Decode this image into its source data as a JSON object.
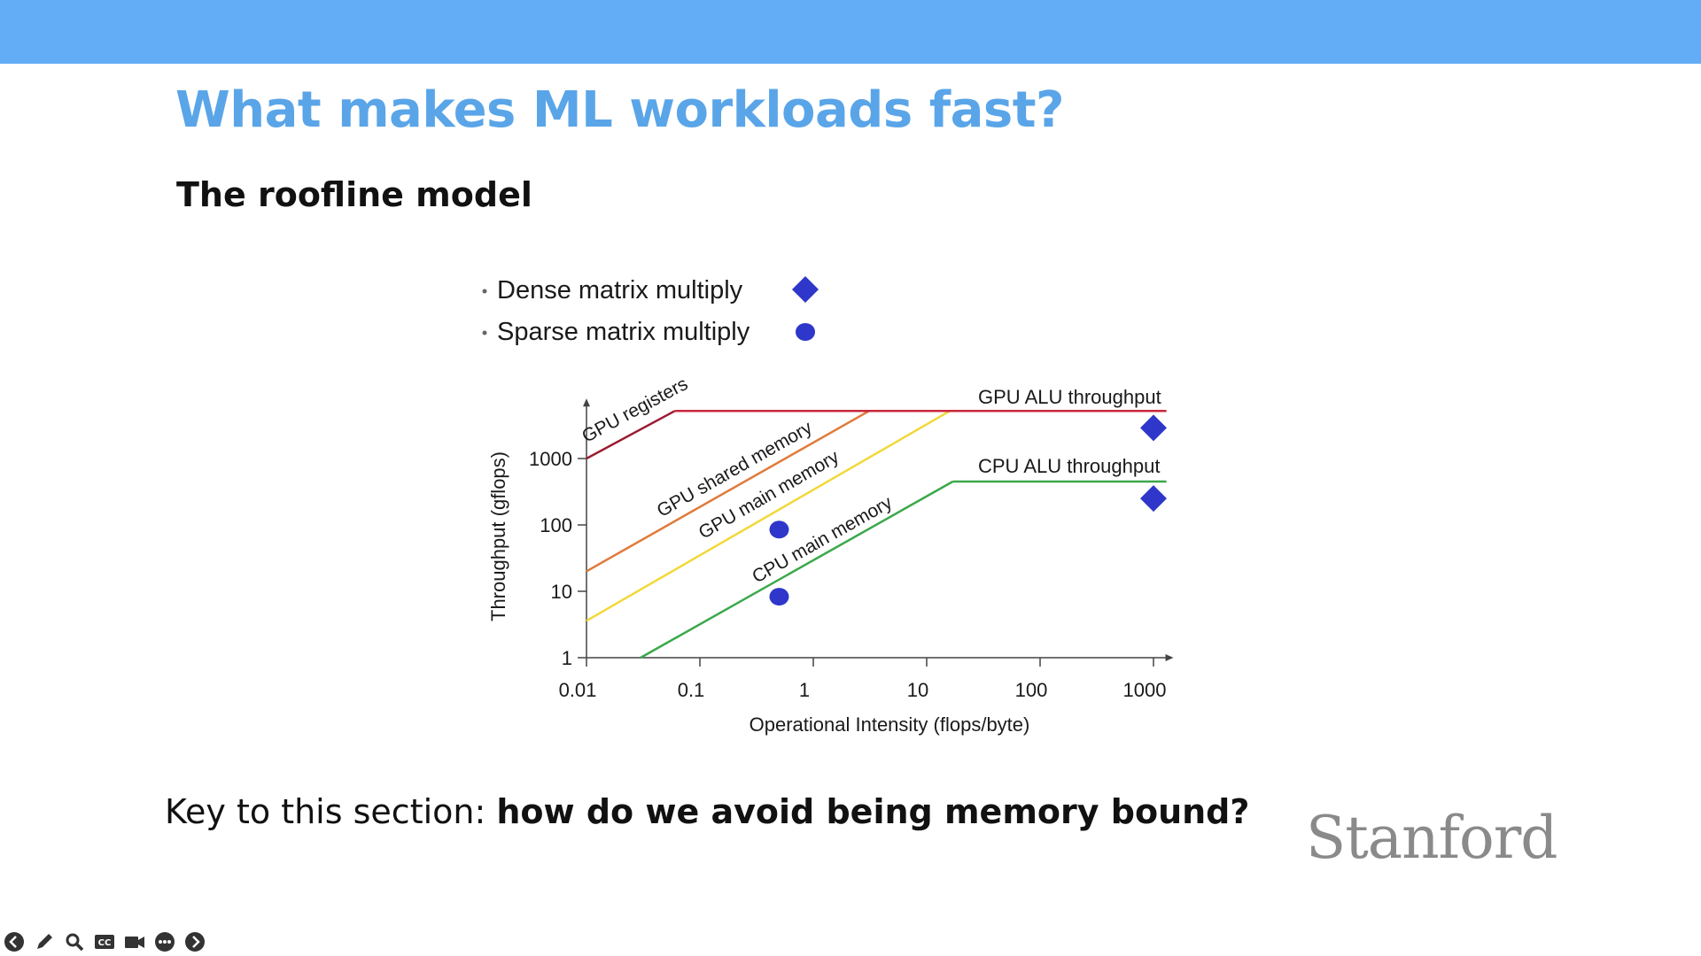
{
  "slide": {
    "title": "What makes ML workloads fast?",
    "subtitle": "The roofline model",
    "key_prefix": "Key to this section: ",
    "key_bold": "how do we avoid being memory bound?",
    "logo_text": "Stanford"
  },
  "colors": {
    "top_bar": "#63adf7",
    "title": "#5aa5e8",
    "gpu_registers": "#9b1b30",
    "gpu_shared_memory": "#e07a3a",
    "gpu_main_memory": "#f2d83a",
    "cpu_main_memory": "#3aa84a",
    "gpu_alu": "#c8283c",
    "cpu_alu": "#3aa84a",
    "marker": "#2e37c9"
  },
  "player_controls": [
    {
      "name": "previous-icon"
    },
    {
      "name": "pen-icon"
    },
    {
      "name": "zoom-icon"
    },
    {
      "name": "closed-captions-icon"
    },
    {
      "name": "camera-icon"
    },
    {
      "name": "more-icon"
    },
    {
      "name": "next-icon"
    }
  ],
  "chart_data": {
    "type": "line",
    "title": "",
    "xlabel": "Operational Intensity (flops/byte)",
    "ylabel": "Throughput (gflops)",
    "x_scale": "log",
    "y_scale": "log",
    "xlim": [
      0.01,
      1500
    ],
    "ylim": [
      1,
      8000
    ],
    "x_ticks": [
      {
        "value": 0.01,
        "label": "0.01"
      },
      {
        "value": 0.1,
        "label": "0.1"
      },
      {
        "value": 1,
        "label": "1"
      },
      {
        "value": 10,
        "label": "10"
      },
      {
        "value": 100,
        "label": "100"
      },
      {
        "value": 1000,
        "label": "1000"
      }
    ],
    "y_ticks": [
      {
        "value": 1,
        "label": "1"
      },
      {
        "value": 10,
        "label": "10"
      },
      {
        "value": 100,
        "label": "100"
      },
      {
        "value": 1000,
        "label": "1000"
      }
    ],
    "grid": false,
    "legend_position": "top-left",
    "legend": [
      {
        "label": "Dense matrix multiply",
        "marker": "diamond"
      },
      {
        "label": "Sparse matrix multiply",
        "marker": "circle"
      }
    ],
    "series": [
      {
        "name": "GPU registers",
        "color_key": "gpu_registers",
        "points": [
          [
            0.01,
            1000
          ],
          [
            0.06,
            5200
          ]
        ]
      },
      {
        "name": "GPU shared memory",
        "color_key": "gpu_shared_memory",
        "points": [
          [
            0.01,
            20
          ],
          [
            3.1,
            5200
          ]
        ]
      },
      {
        "name": "GPU main memory",
        "color_key": "gpu_main_memory",
        "points": [
          [
            0.01,
            3.6
          ],
          [
            16,
            5200
          ]
        ]
      },
      {
        "name": "CPU main memory",
        "color_key": "cpu_main_memory",
        "points": [
          [
            0.03,
            1
          ],
          [
            17,
            450
          ]
        ]
      },
      {
        "name": "GPU ALU throughput",
        "color_key": "gpu_alu",
        "points": [
          [
            0.06,
            5200
          ],
          [
            1300,
            5200
          ]
        ]
      },
      {
        "name": "CPU ALU throughput",
        "color_key": "cpu_alu",
        "points": [
          [
            17,
            450
          ],
          [
            1300,
            450
          ]
        ]
      }
    ],
    "markers": [
      {
        "series": "Dense matrix multiply",
        "shape": "diamond",
        "x": 1000,
        "y": 2900
      },
      {
        "series": "Dense matrix multiply",
        "shape": "diamond",
        "x": 1000,
        "y": 250
      },
      {
        "series": "Sparse matrix multiply",
        "shape": "circle",
        "x": 0.5,
        "y": 85
      },
      {
        "series": "Sparse matrix multiply",
        "shape": "circle",
        "x": 0.5,
        "y": 8.3
      }
    ]
  }
}
